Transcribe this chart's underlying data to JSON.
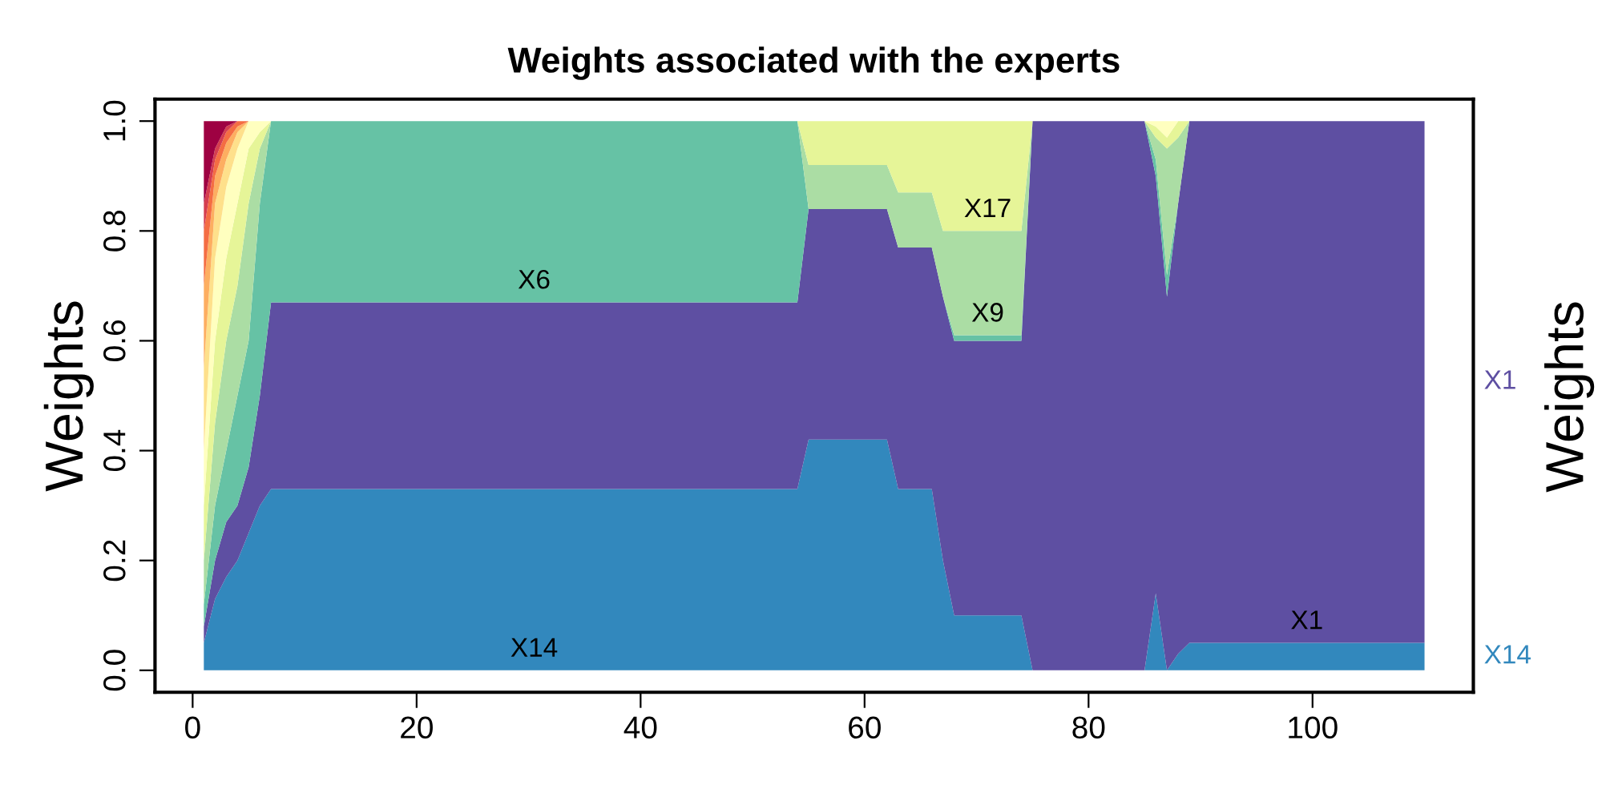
{
  "chart_data": {
    "type": "area",
    "stacked": true,
    "title": "Weights associated with the experts",
    "ylabel": "Weights",
    "y2label": "Weights",
    "x": [
      1,
      2,
      3,
      4,
      5,
      6,
      7,
      54,
      55,
      62,
      63,
      66,
      67,
      68,
      74,
      75,
      85,
      86,
      87,
      88,
      89,
      110
    ],
    "xlim": [
      -3.36,
      114.36
    ],
    "xticks": [
      0,
      20,
      40,
      60,
      80,
      100
    ],
    "ylim": [
      -0.04,
      1.04
    ],
    "yticks": [
      {
        "value": 0,
        "label": "0.0"
      },
      {
        "value": 0.2,
        "label": "0.2"
      },
      {
        "value": 0.4,
        "label": "0.4"
      },
      {
        "value": 0.6,
        "label": "0.6"
      },
      {
        "value": 0.8,
        "label": "0.8"
      },
      {
        "value": 1,
        "label": "1.0"
      }
    ],
    "grid": false,
    "legend": false,
    "series": [
      {
        "name": "X14",
        "color": "#3288bd",
        "values": [
          0.05,
          0.13,
          0.17,
          0.2,
          0.25,
          0.3,
          0.33,
          0.33,
          0.42,
          0.42,
          0.33,
          0.33,
          0.2,
          0.1,
          0.1,
          0,
          0,
          0.14,
          0,
          0.03,
          0.05,
          0.05
        ]
      },
      {
        "name": "X1",
        "color": "#5e4fa2",
        "values": [
          0.03,
          0.07,
          0.1,
          0.1,
          0.12,
          0.2,
          0.34,
          0.34,
          0.42,
          0.42,
          0.44,
          0.44,
          0.48,
          0.5,
          0.5,
          1,
          1,
          0.76,
          0.68,
          0.82,
          0.95,
          0.95
        ]
      },
      {
        "name": "X6",
        "color": "#66c2a5",
        "values": [
          0.04,
          0.1,
          0.13,
          0.2,
          0.23,
          0.35,
          0.33,
          0.33,
          0,
          0,
          0,
          0,
          0,
          0.01,
          0.01,
          0,
          0,
          0.03,
          0.04,
          0,
          0,
          0
        ]
      },
      {
        "name": "X9",
        "color": "#abdda4",
        "values": [
          0.08,
          0.15,
          0.2,
          0.2,
          0.25,
          0.1,
          0,
          0,
          0.08,
          0.08,
          0.1,
          0.1,
          0.12,
          0.19,
          0.19,
          0,
          0,
          0.04,
          0.23,
          0.12,
          0,
          0
        ]
      },
      {
        "name": "X17",
        "color": "#e6f598",
        "values": [
          0.1,
          0.15,
          0.15,
          0.15,
          0.1,
          0.03,
          0,
          0,
          0.08,
          0.08,
          0.13,
          0.13,
          0.2,
          0.2,
          0.2,
          0,
          0,
          0.02,
          0.02,
          0.03,
          0,
          0
        ]
      },
      {
        "color": "#ffffbf",
        "values": [
          0.1,
          0.15,
          0.13,
          0.1,
          0.05,
          0.02,
          0,
          0,
          0,
          0,
          0,
          0,
          0,
          0,
          0,
          0,
          0,
          0.01,
          0.03,
          0,
          0,
          0
        ]
      },
      {
        "color": "#fee08b",
        "values": [
          0.15,
          0.1,
          0.05,
          0.03,
          0,
          0,
          0,
          0,
          0,
          0,
          0,
          0,
          0,
          0,
          0,
          0,
          0,
          0,
          0,
          0,
          0,
          0
        ]
      },
      {
        "color": "#fdae61",
        "values": [
          0.15,
          0.05,
          0.03,
          0.01,
          0,
          0,
          0,
          0,
          0,
          0,
          0,
          0,
          0,
          0,
          0,
          0,
          0,
          0,
          0,
          0,
          0,
          0
        ]
      },
      {
        "color": "#f46d43",
        "values": [
          0.1,
          0.03,
          0.02,
          0.01,
          0,
          0,
          0,
          0,
          0,
          0,
          0,
          0,
          0,
          0,
          0,
          0,
          0,
          0,
          0,
          0,
          0,
          0
        ]
      },
      {
        "color": "#d53e4f",
        "values": [
          0.05,
          0.02,
          0.01,
          0,
          0,
          0,
          0,
          0,
          0,
          0,
          0,
          0,
          0,
          0,
          0,
          0,
          0,
          0,
          0,
          0,
          0,
          0
        ]
      },
      {
        "color": "#9e0142",
        "values": [
          0.15,
          0.05,
          0.01,
          0,
          0,
          0,
          0,
          0,
          0,
          0,
          0,
          0,
          0,
          0,
          0,
          0,
          0,
          0,
          0,
          0,
          0,
          0
        ]
      }
    ]
  }
}
